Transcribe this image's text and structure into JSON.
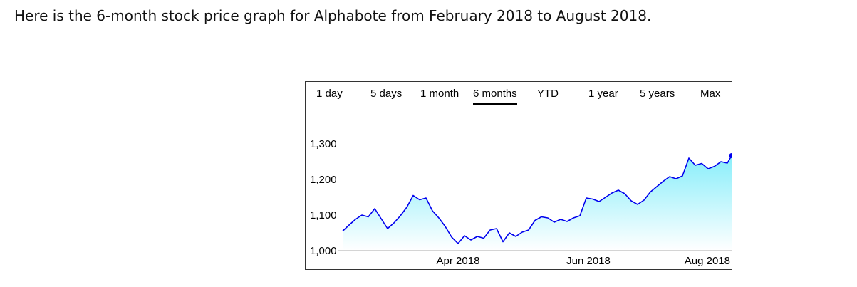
{
  "caption": "Here is the 6-month stock price graph for Alphabote from February 2018 to August 2018.",
  "range_tabs": [
    {
      "label": "1 day",
      "selected": false
    },
    {
      "label": "5 days",
      "selected": false
    },
    {
      "label": "1 month",
      "selected": false
    },
    {
      "label": "6 months",
      "selected": true
    },
    {
      "label": "YTD",
      "selected": false
    },
    {
      "label": "1 year",
      "selected": false
    },
    {
      "label": "5 years",
      "selected": false
    },
    {
      "label": "Max",
      "selected": false
    }
  ],
  "colors": {
    "line": "#0000ee",
    "fill_top": "#88eefa",
    "fill_bottom": "#ffffff"
  },
  "chart_data": {
    "type": "area",
    "title": "",
    "xlabel": "",
    "ylabel": "",
    "ylim": [
      1000,
      1300
    ],
    "yticks": [
      1000,
      1100,
      1200,
      1300
    ],
    "ytick_labels": [
      "1,000",
      "1,100",
      "1,200",
      "1,300"
    ],
    "xlim": [
      "2018-02-06",
      "2018-08-07"
    ],
    "xticks": [
      "2018-04-01",
      "2018-06-01",
      "2018-08-01"
    ],
    "xtick_labels": [
      "Apr 2018",
      "Jun 2018",
      "Aug 2018"
    ],
    "grid": false,
    "series": [
      {
        "x": [
          "2018-02-06",
          "2018-02-09",
          "2018-02-12",
          "2018-02-15",
          "2018-02-18",
          "2018-02-21",
          "2018-02-24",
          "2018-02-27",
          "2018-03-02",
          "2018-03-05",
          "2018-03-08",
          "2018-03-11",
          "2018-03-14",
          "2018-03-17",
          "2018-03-20",
          "2018-03-23",
          "2018-03-26",
          "2018-03-29",
          "2018-04-01",
          "2018-04-04",
          "2018-04-07",
          "2018-04-10",
          "2018-04-13",
          "2018-04-16",
          "2018-04-19",
          "2018-04-22",
          "2018-04-25",
          "2018-04-28",
          "2018-05-01",
          "2018-05-04",
          "2018-05-07",
          "2018-05-10",
          "2018-05-13",
          "2018-05-16",
          "2018-05-19",
          "2018-05-22",
          "2018-05-25",
          "2018-05-28",
          "2018-05-31",
          "2018-06-03",
          "2018-06-06",
          "2018-06-09",
          "2018-06-12",
          "2018-06-15",
          "2018-06-18",
          "2018-06-21",
          "2018-06-24",
          "2018-06-27",
          "2018-06-30",
          "2018-07-03",
          "2018-07-06",
          "2018-07-09",
          "2018-07-12",
          "2018-07-15",
          "2018-07-18",
          "2018-07-21",
          "2018-07-24",
          "2018-07-27",
          "2018-07-30",
          "2018-08-02",
          "2018-08-05",
          "2018-08-07"
        ],
        "y": [
          1055,
          1072,
          1088,
          1100,
          1095,
          1118,
          1090,
          1062,
          1078,
          1098,
          1122,
          1155,
          1143,
          1148,
          1112,
          1092,
          1068,
          1038,
          1020,
          1042,
          1030,
          1040,
          1035,
          1058,
          1062,
          1025,
          1050,
          1040,
          1052,
          1058,
          1085,
          1095,
          1092,
          1080,
          1088,
          1082,
          1092,
          1098,
          1148,
          1145,
          1138,
          1150,
          1162,
          1170,
          1160,
          1140,
          1130,
          1142,
          1165,
          1180,
          1195,
          1208,
          1202,
          1210,
          1260,
          1240,
          1245,
          1230,
          1237,
          1250,
          1246,
          1267
        ]
      }
    ]
  }
}
